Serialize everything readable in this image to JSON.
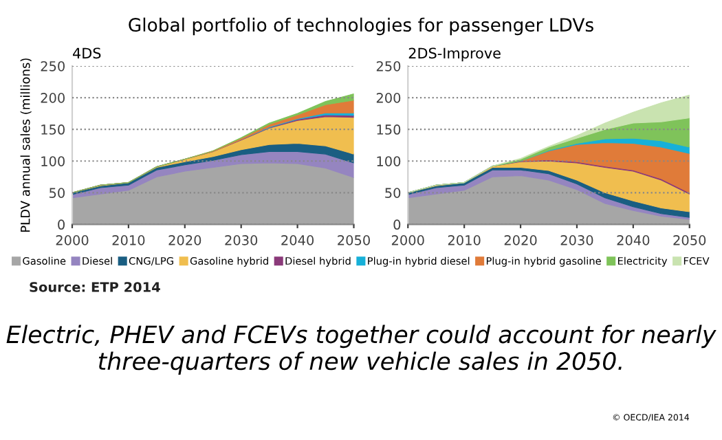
{
  "chart_data": [
    {
      "type": "area",
      "stacked": true,
      "title": "Global portfolio of technologies for passenger LDVs",
      "subtitle": "4DS",
      "ylabel": "PLDV annual sales (millions)",
      "x": [
        2000,
        2005,
        2010,
        2015,
        2020,
        2025,
        2030,
        2035,
        2040,
        2045,
        2050
      ],
      "xlim": [
        2000,
        2050
      ],
      "xticks": [
        2000,
        2010,
        2020,
        2030,
        2040,
        2050
      ],
      "ylim": [
        0,
        250
      ],
      "yticks": [
        0,
        50,
        100,
        150,
        200,
        250
      ],
      "grid": "y",
      "legend": "bottom",
      "series": [
        {
          "name": "Gasoline",
          "color": "#a6a6a6",
          "values": [
            42,
            48,
            54,
            75,
            84,
            90,
            96,
            97,
            96,
            89,
            74
          ]
        },
        {
          "name": "Diesel",
          "color": "#9585c0",
          "values": [
            5,
            10,
            8,
            11,
            10,
            11,
            14,
            18,
            19,
            22,
            23
          ]
        },
        {
          "name": "CNG/LPG",
          "color": "#1a5e82",
          "values": [
            3,
            3,
            4,
            4,
            5,
            6,
            8,
            11,
            13,
            13,
            14
          ]
        },
        {
          "name": "Gasoline hybrid",
          "color": "#f0be4f",
          "values": [
            0,
            1,
            0,
            1,
            4,
            8,
            15,
            26,
            36,
            46,
            58
          ]
        },
        {
          "name": "Diesel hybrid",
          "color": "#8b3a7a",
          "values": [
            0,
            0,
            0,
            0,
            0,
            0,
            1,
            1,
            2,
            3,
            3
          ]
        },
        {
          "name": "Plug-in hybrid diesel",
          "color": "#17b0d8",
          "values": [
            0,
            0,
            0,
            0,
            0,
            0,
            0,
            1,
            1,
            3,
            4
          ]
        },
        {
          "name": "Plug-in hybrid gasoline",
          "color": "#e07b39",
          "values": [
            0,
            0,
            0,
            0,
            0,
            1,
            2,
            4,
            6,
            13,
            20
          ]
        },
        {
          "name": "Electricity",
          "color": "#7fc35a",
          "values": [
            0,
            0,
            0,
            0,
            0,
            0,
            1,
            2,
            2,
            5,
            10
          ]
        }
      ],
      "annotations": [
        "Source: ETP 2014",
        "Electric, PHEV and FCEVs together could account for nearly three-quarters of new vehicle sales in 2050.",
        "© OECD/IEA 2014"
      ]
    },
    {
      "type": "area",
      "stacked": true,
      "subtitle": "2DS-Improve",
      "x": [
        2000,
        2005,
        2010,
        2015,
        2020,
        2025,
        2030,
        2035,
        2040,
        2045,
        2050
      ],
      "xlim": [
        2000,
        2050
      ],
      "xticks": [
        2000,
        2010,
        2020,
        2030,
        2040,
        2050
      ],
      "ylim": [
        0,
        250
      ],
      "yticks": [
        0,
        50,
        100,
        150,
        200,
        250
      ],
      "grid": "y",
      "legend": "bottom",
      "series": [
        {
          "name": "Gasoline",
          "color": "#a6a6a6",
          "values": [
            42,
            48,
            54,
            75,
            77,
            70,
            55,
            33,
            22,
            13,
            8
          ]
        },
        {
          "name": "Diesel",
          "color": "#9585c0",
          "values": [
            5,
            10,
            8,
            11,
            9,
            10,
            9,
            9,
            6,
            4,
            3
          ]
        },
        {
          "name": "CNG/LPG",
          "color": "#1a5e82",
          "values": [
            3,
            3,
            4,
            4,
            4,
            5,
            6,
            8,
            9,
            9,
            9
          ]
        },
        {
          "name": "Gasoline hybrid",
          "color": "#f0be4f",
          "values": [
            0,
            1,
            0,
            2,
            9,
            15,
            27,
            40,
            47,
            44,
            28
          ]
        },
        {
          "name": "Diesel hybrid",
          "color": "#8b3a7a",
          "values": [
            0,
            0,
            0,
            0,
            1,
            2,
            2,
            2,
            2,
            2,
            2
          ]
        },
        {
          "name": "Plug-in hybrid gasoline",
          "color": "#e07b39",
          "values": [
            0,
            0,
            0,
            0,
            0,
            14,
            27,
            37,
            42,
            50,
            62
          ]
        },
        {
          "name": "Plug-in hybrid diesel",
          "color": "#17b0d8",
          "values": [
            0,
            0,
            0,
            0,
            0,
            1,
            2,
            6,
            8,
            10,
            10
          ]
        },
        {
          "name": "Electricity",
          "color": "#7fc35a",
          "values": [
            0,
            0,
            0,
            0,
            3,
            5,
            8,
            15,
            24,
            30,
            46
          ]
        },
        {
          "name": "FCEV",
          "color": "#c9e3b0",
          "values": [
            0,
            0,
            0,
            0,
            1,
            1,
            4,
            10,
            17,
            30,
            36
          ]
        }
      ]
    }
  ]
}
